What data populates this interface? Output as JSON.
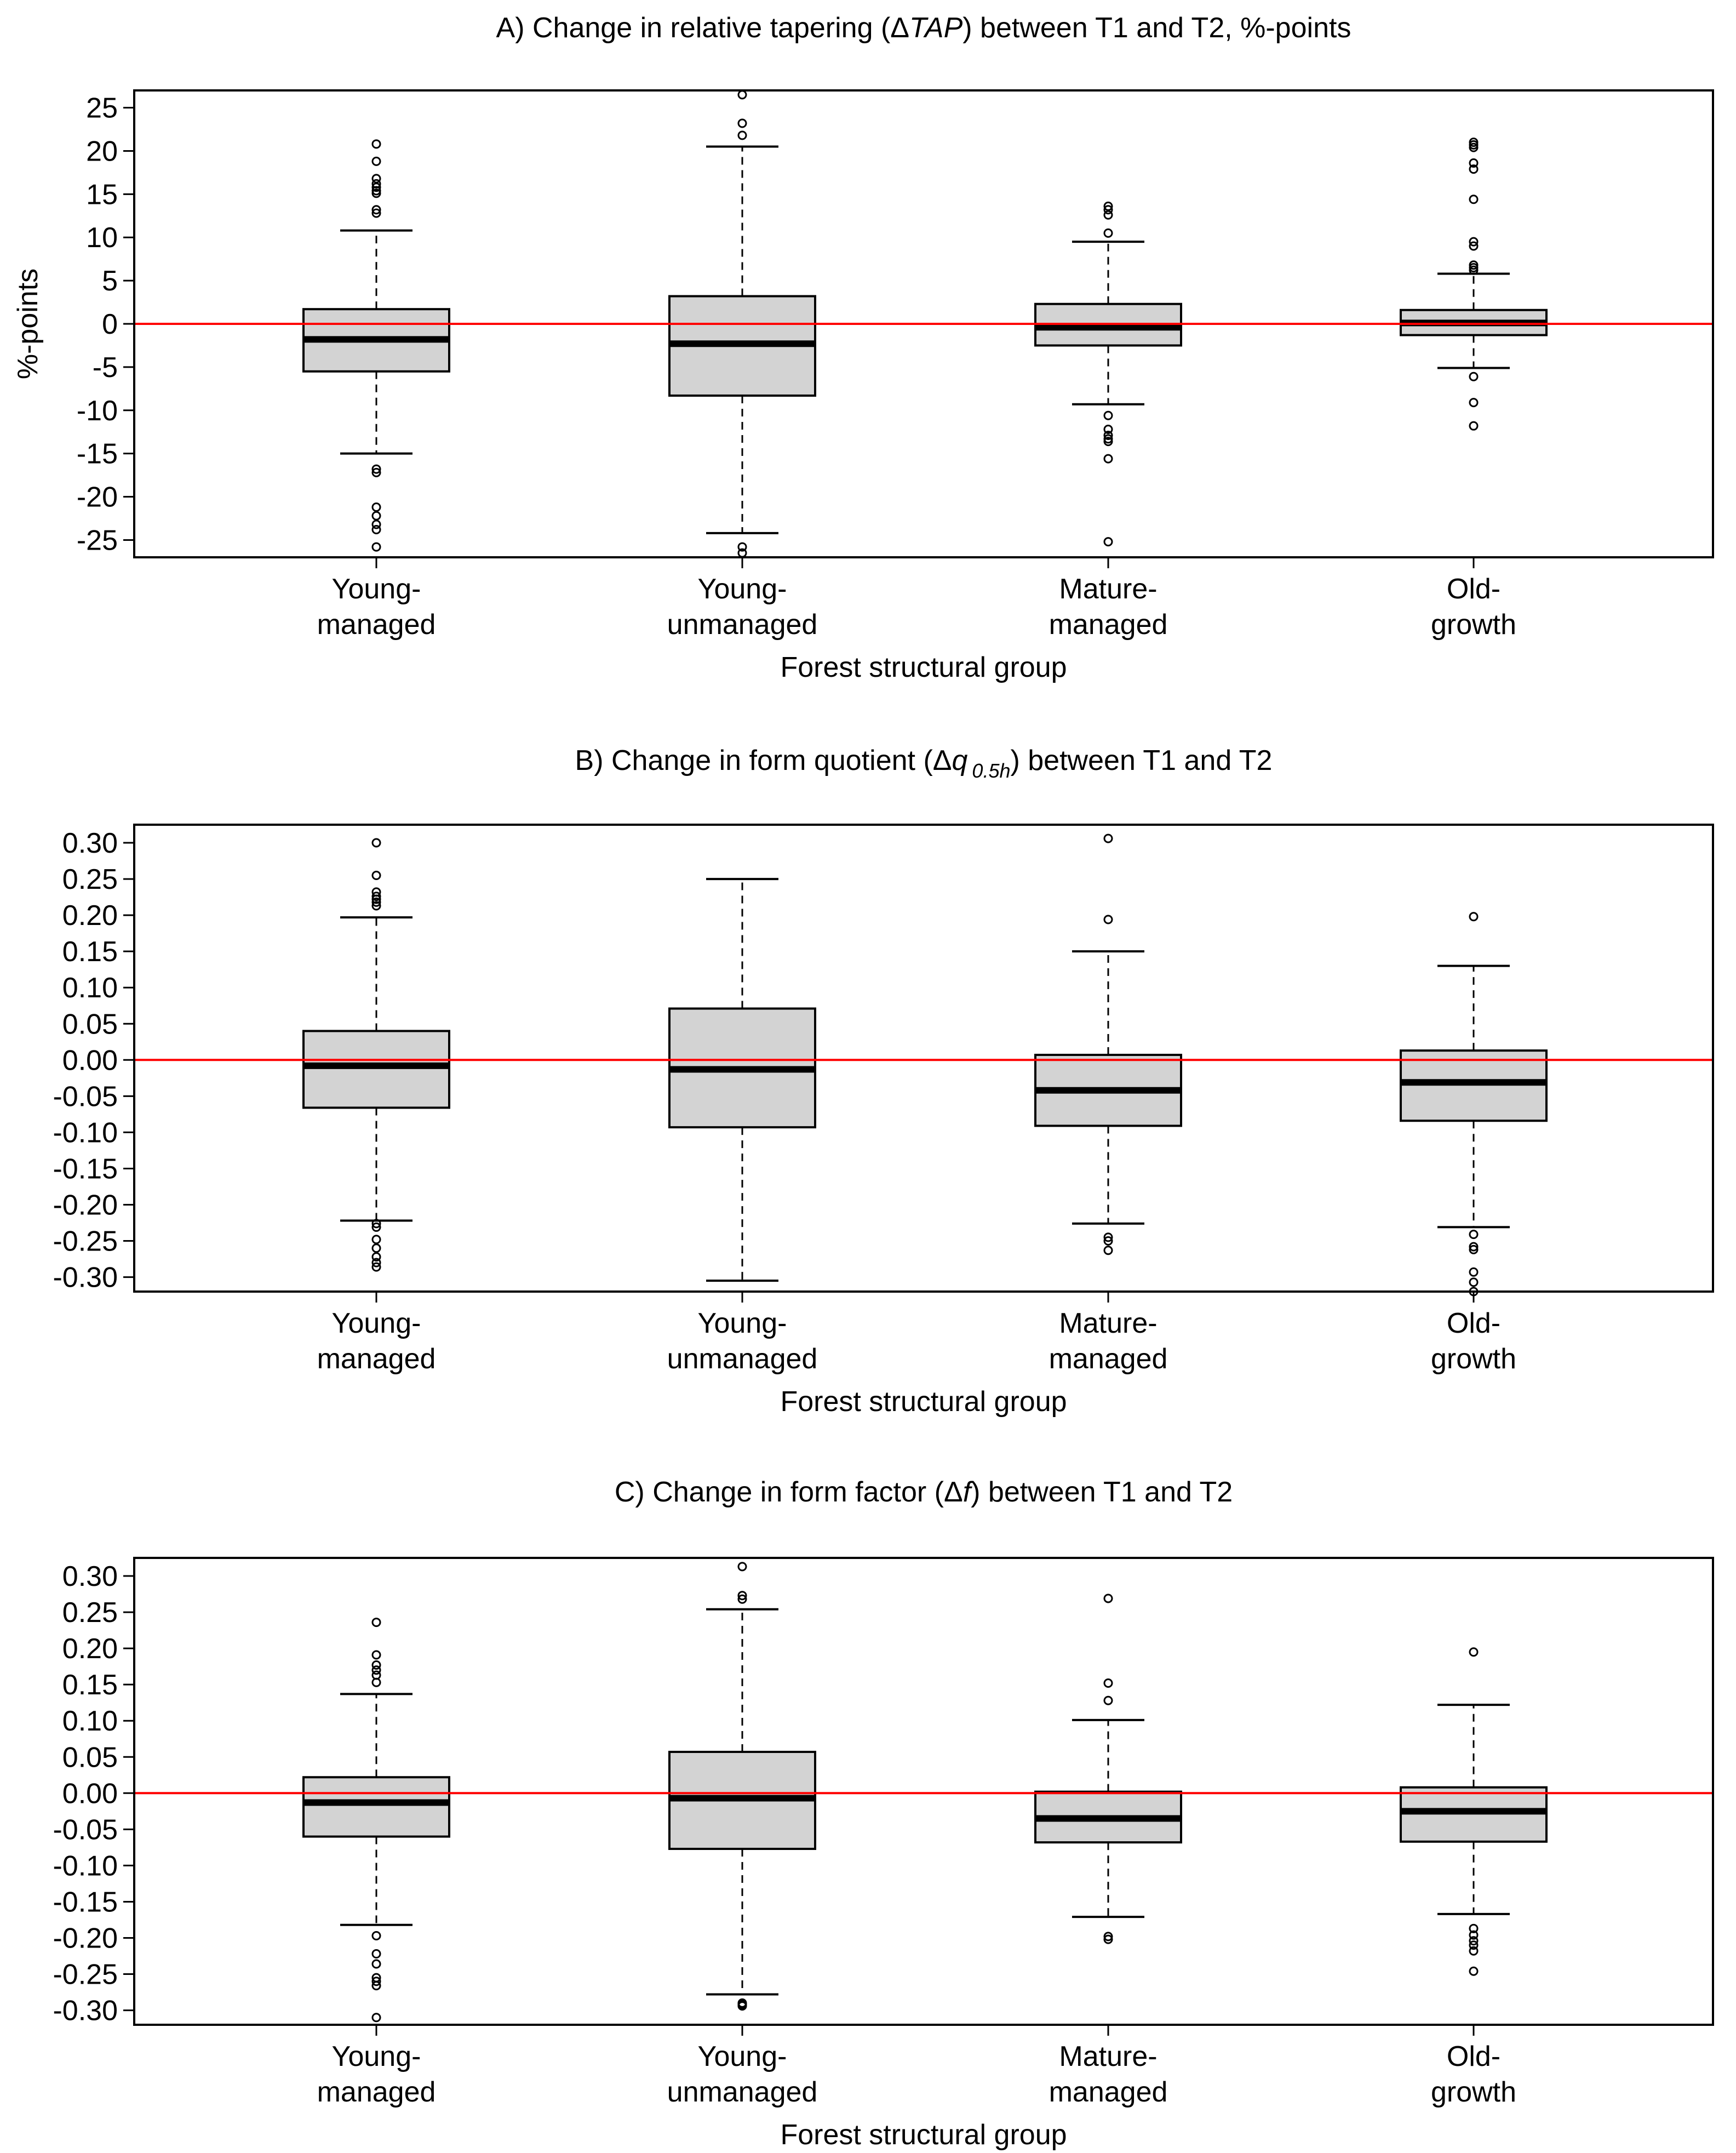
{
  "figure": {
    "xlabel": "Forest structural group"
  },
  "chart_data": [
    {
      "type": "box",
      "title_prefix": "A) Change in relative tapering (Δ",
      "title_symbol": "TAP",
      "title_sub": "",
      "title_suffix": ") between T1 and T2, %-points",
      "ylabel": "%-points",
      "xlabel": "Forest structural group",
      "ylim": [
        -27,
        27
      ],
      "yticks": [
        {
          "value": 25,
          "label": "25"
        },
        {
          "value": 20,
          "label": "20"
        },
        {
          "value": 15,
          "label": "15"
        },
        {
          "value": 10,
          "label": "10"
        },
        {
          "value": 5,
          "label": "5"
        },
        {
          "value": 0,
          "label": "0"
        },
        {
          "value": -5,
          "label": "-5"
        },
        {
          "value": -10,
          "label": "-10"
        },
        {
          "value": -15,
          "label": "-15"
        },
        {
          "value": -20,
          "label": "-20"
        },
        {
          "value": -25,
          "label": "-25"
        }
      ],
      "reference_line": 0,
      "groups": [
        {
          "line1": "Young-",
          "line2": "managed",
          "whisker_low": -15,
          "q1": -5.5,
          "median": -1.8,
          "q3": 1.7,
          "whisker_high": 10.8,
          "outliers": [
            20.8,
            18.8,
            16.8,
            16.2,
            15.8,
            15.4,
            15.1,
            13.2,
            12.8,
            -16.8,
            -17.2,
            -21.2,
            -22.2,
            -23.2,
            -23.8,
            -25.8
          ]
        },
        {
          "line1": "Young-",
          "line2": "unmanaged",
          "whisker_low": -24.2,
          "q1": -8.3,
          "median": -2.3,
          "q3": 3.2,
          "whisker_high": 20.5,
          "outliers": [
            26.5,
            23.2,
            21.8,
            -25.8,
            -26.5
          ]
        },
        {
          "line1": "Mature-",
          "line2": "managed",
          "whisker_low": -9.3,
          "q1": -2.5,
          "median": -0.4,
          "q3": 2.3,
          "whisker_high": 9.5,
          "outliers": [
            13.6,
            13.2,
            12.6,
            10.5,
            -10.6,
            -12.2,
            -12.9,
            -13.3,
            -13.6,
            -15.6,
            -25.2
          ]
        },
        {
          "line1": "Old-",
          "line2": "growth",
          "whisker_low": -5.1,
          "q1": -1.3,
          "median": 0.1,
          "q3": 1.6,
          "whisker_high": 5.8,
          "outliers": [
            21,
            20.7,
            20.4,
            18.6,
            17.9,
            14.4,
            9.5,
            9.0,
            6.8,
            6.5,
            6.2,
            -6.1,
            -9.1,
            -11.8
          ]
        }
      ]
    },
    {
      "type": "box",
      "title_prefix": "B) Change in form quotient (Δ",
      "title_symbol": "q",
      "title_sub": "0.5h",
      "title_suffix": ") between T1 and T2",
      "ylabel": "",
      "xlabel": "Forest structural group",
      "ylim": [
        -0.32,
        0.325
      ],
      "yticks": [
        {
          "value": 0.3,
          "label": "0.30"
        },
        {
          "value": 0.25,
          "label": "0.25"
        },
        {
          "value": 0.2,
          "label": "0.20"
        },
        {
          "value": 0.15,
          "label": "0.15"
        },
        {
          "value": 0.1,
          "label": "0.10"
        },
        {
          "value": 0.05,
          "label": "0.05"
        },
        {
          "value": 0.0,
          "label": "0.00"
        },
        {
          "value": -0.05,
          "label": "-0.05"
        },
        {
          "value": -0.1,
          "label": "-0.10"
        },
        {
          "value": -0.15,
          "label": "-0.15"
        },
        {
          "value": -0.2,
          "label": "-0.20"
        },
        {
          "value": -0.25,
          "label": "-0.25"
        },
        {
          "value": -0.3,
          "label": "-0.30"
        }
      ],
      "reference_line": 0,
      "groups": [
        {
          "line1": "Young-",
          "line2": "managed",
          "whisker_low": -0.222,
          "q1": -0.066,
          "median": -0.008,
          "q3": 0.04,
          "whisker_high": 0.197,
          "outliers": [
            0.3,
            0.255,
            0.232,
            0.226,
            0.222,
            0.218,
            0.213,
            -0.226,
            -0.231,
            -0.248,
            -0.26,
            -0.272,
            -0.28,
            -0.286
          ]
        },
        {
          "line1": "Young-",
          "line2": "unmanaged",
          "whisker_low": -0.305,
          "q1": -0.093,
          "median": -0.013,
          "q3": 0.071,
          "whisker_high": 0.25,
          "outliers": []
        },
        {
          "line1": "Mature-",
          "line2": "managed",
          "whisker_low": -0.226,
          "q1": -0.091,
          "median": -0.042,
          "q3": 0.007,
          "whisker_high": 0.15,
          "outliers": [
            0.306,
            0.194,
            -0.245,
            -0.25,
            -0.263
          ]
        },
        {
          "line1": "Old-",
          "line2": "growth",
          "whisker_low": -0.231,
          "q1": -0.084,
          "median": -0.031,
          "q3": 0.013,
          "whisker_high": 0.13,
          "outliers": [
            0.198,
            -0.241,
            -0.258,
            -0.262,
            -0.293,
            -0.307,
            -0.32
          ]
        }
      ]
    },
    {
      "type": "box",
      "title_prefix": "C) Change in form factor (Δ",
      "title_symbol": "f",
      "title_sub": "",
      "title_suffix": ") between T1 and T2",
      "ylabel": "",
      "xlabel": "Forest structural group",
      "ylim": [
        -0.32,
        0.325
      ],
      "yticks": [
        {
          "value": 0.3,
          "label": "0.30"
        },
        {
          "value": 0.25,
          "label": "0.25"
        },
        {
          "value": 0.2,
          "label": "0.20"
        },
        {
          "value": 0.15,
          "label": "0.15"
        },
        {
          "value": 0.1,
          "label": "0.10"
        },
        {
          "value": 0.05,
          "label": "0.05"
        },
        {
          "value": 0.0,
          "label": "0.00"
        },
        {
          "value": -0.05,
          "label": "-0.05"
        },
        {
          "value": -0.1,
          "label": "-0.10"
        },
        {
          "value": -0.15,
          "label": "-0.15"
        },
        {
          "value": -0.2,
          "label": "-0.20"
        },
        {
          "value": -0.25,
          "label": "-0.25"
        },
        {
          "value": -0.3,
          "label": "-0.30"
        }
      ],
      "reference_line": 0,
      "groups": [
        {
          "line1": "Young-",
          "line2": "managed",
          "whisker_low": -0.182,
          "q1": -0.06,
          "median": -0.013,
          "q3": 0.022,
          "whisker_high": 0.137,
          "outliers": [
            0.236,
            0.191,
            0.177,
            0.17,
            0.163,
            0.153,
            -0.197,
            -0.222,
            -0.236,
            -0.255,
            -0.26,
            -0.266,
            -0.31
          ]
        },
        {
          "line1": "Young-",
          "line2": "unmanaged",
          "whisker_low": -0.278,
          "q1": -0.077,
          "median": -0.007,
          "q3": 0.057,
          "whisker_high": 0.254,
          "outliers": [
            0.313,
            0.273,
            0.268,
            -0.29,
            -0.292,
            -0.294
          ]
        },
        {
          "line1": "Mature-",
          "line2": "managed",
          "whisker_low": -0.171,
          "q1": -0.068,
          "median": -0.035,
          "q3": 0.002,
          "whisker_high": 0.101,
          "outliers": [
            0.269,
            0.152,
            0.128,
            -0.198,
            -0.202
          ]
        },
        {
          "line1": "Old-",
          "line2": "growth",
          "whisker_low": -0.167,
          "q1": -0.067,
          "median": -0.025,
          "q3": 0.008,
          "whisker_high": 0.122,
          "outliers": [
            0.195,
            -0.187,
            -0.196,
            -0.204,
            -0.21,
            -0.218,
            -0.246
          ]
        }
      ]
    }
  ]
}
